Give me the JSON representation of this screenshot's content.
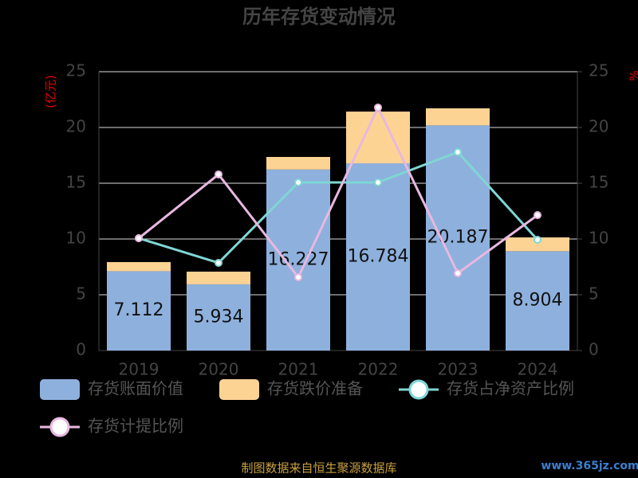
{
  "chart_data": {
    "type": "bar",
    "title": "历年存货变动情况",
    "y_label": "(亿元)",
    "y2_label": "%",
    "categories": [
      "2019",
      "2020",
      "2021",
      "2022",
      "2023",
      "2024"
    ],
    "series": [
      {
        "name": "存货账面价值",
        "color": "#8eb0dd",
        "values": [
          7.112,
          5.934,
          16.227,
          16.784,
          20.187,
          8.904
        ]
      },
      {
        "name": "存货跌价准备",
        "color": "#fdd394",
        "values": [
          0.82,
          1.14,
          1.13,
          4.64,
          1.53,
          1.24
        ]
      },
      {
        "name": "存货占净资产比例",
        "color": "#7fd6d4",
        "type": "line",
        "axis": "y2",
        "values": [
          10.07,
          7.86,
          15.07,
          15.07,
          17.79,
          9.93
        ]
      },
      {
        "name": "存货计提比例",
        "color": "#e8b8e0",
        "type": "line",
        "axis": "y2",
        "values": [
          10.07,
          15.79,
          6.57,
          21.79,
          6.93,
          12.14
        ]
      }
    ],
    "ylim": [
      0,
      25
    ],
    "yticks": [
      0,
      5,
      10,
      15,
      20,
      25
    ],
    "y2lim": [
      0,
      25
    ],
    "y2ticks": [
      0,
      5,
      10,
      15,
      20,
      25
    ],
    "grid": true,
    "source": "制图数据来自恒生聚源数据库",
    "watermark": "www.365jz.com"
  }
}
